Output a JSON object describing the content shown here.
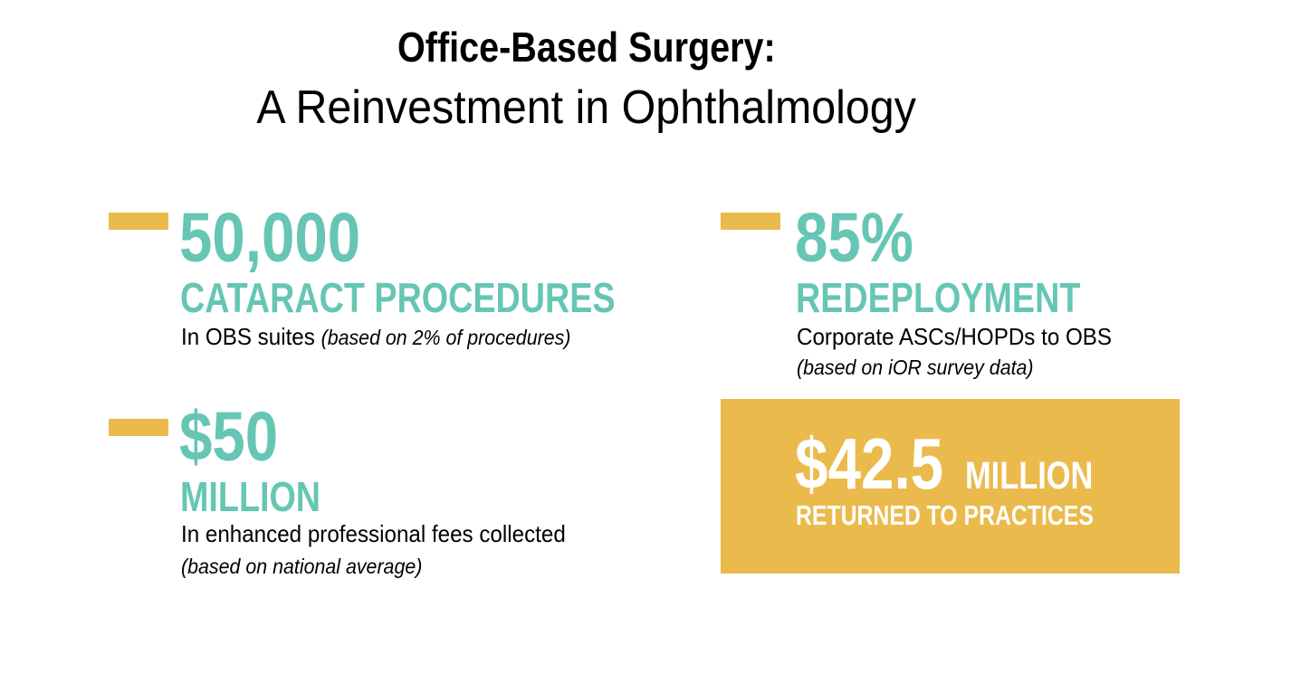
{
  "title": {
    "line1": "Office-Based Surgery:",
    "line2": "A Reinvestment in Ophthalmology"
  },
  "colors": {
    "accent_teal": "#66C6B4",
    "accent_gold": "#EBBA4C",
    "text": "#000000"
  },
  "stats": [
    {
      "value": "50,000",
      "label": "CATARACT PROCEDURES",
      "desc": "In OBS suites",
      "note": "(based on 2% of procedures)"
    },
    {
      "value": "85%",
      "label": "REDEPLOYMENT",
      "desc": "Corporate ASCs/HOPDs to OBS",
      "note": "(based on iOR survey data)"
    },
    {
      "value": "$50",
      "label": "MILLION",
      "desc": "In enhanced professional fees collected",
      "note": "(based on national average)"
    }
  ],
  "highlight": {
    "value": "$42.5",
    "unit": "MILLION",
    "label": "RETURNED TO PRACTICES"
  }
}
